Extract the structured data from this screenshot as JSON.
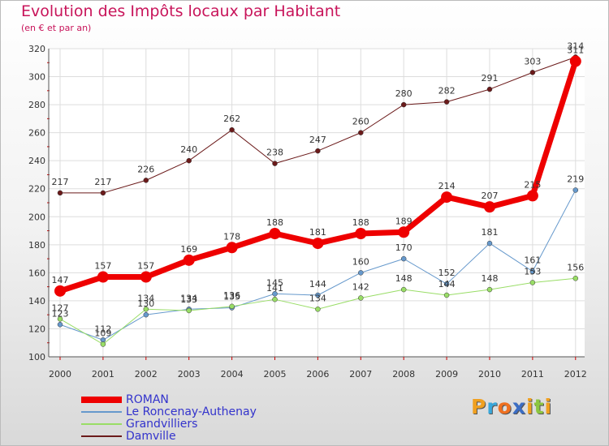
{
  "title": "Evolution des Impôts locaux par Habitant",
  "subtitle": "(en € et par an)",
  "logo": {
    "letters": [
      "P",
      "r",
      "o",
      "x",
      "i",
      "t",
      "i"
    ],
    "colors": [
      "#f0a020",
      "#39a8dc",
      "#f07020",
      "#3b6dc4",
      "#f0a020",
      "#8cc63f",
      "#f0a020"
    ]
  },
  "chart_data": {
    "type": "line",
    "title": "Evolution des Impôts locaux par Habitant",
    "ylabel": "(en € et par an)",
    "xlabel": "",
    "ylim": [
      100,
      320
    ],
    "yticks": [
      100,
      120,
      140,
      160,
      180,
      200,
      220,
      240,
      260,
      280,
      300,
      320
    ],
    "categories": [
      "2000",
      "2001",
      "2002",
      "2003",
      "2004",
      "2005",
      "2006",
      "2007",
      "2008",
      "2009",
      "2010",
      "2011",
      "2012"
    ],
    "grid": true,
    "series": [
      {
        "name": "ROMAN",
        "color": "#ee0000",
        "line_width": 7,
        "marker_size": 7,
        "values": [
          147,
          157,
          157,
          169,
          178,
          188,
          181,
          188,
          189,
          214,
          207,
          215,
          311
        ]
      },
      {
        "name": "Le Roncenay-Authenay",
        "color": "#6699cc",
        "line_width": 1,
        "marker_size": 3,
        "values": [
          123,
          112,
          130,
          134,
          135,
          145,
          144,
          160,
          170,
          152,
          181,
          161,
          219
        ]
      },
      {
        "name": "Grandvilliers",
        "color": "#99dd66",
        "line_width": 1,
        "marker_size": 3,
        "values": [
          127,
          109,
          134,
          133,
          136,
          141,
          134,
          142,
          148,
          144,
          148,
          153,
          156
        ]
      },
      {
        "name": "Damville",
        "color": "#6b1a1a",
        "line_width": 1,
        "marker_size": 3,
        "values": [
          217,
          217,
          226,
          240,
          262,
          238,
          247,
          260,
          280,
          282,
          291,
          303,
          314
        ]
      }
    ]
  }
}
